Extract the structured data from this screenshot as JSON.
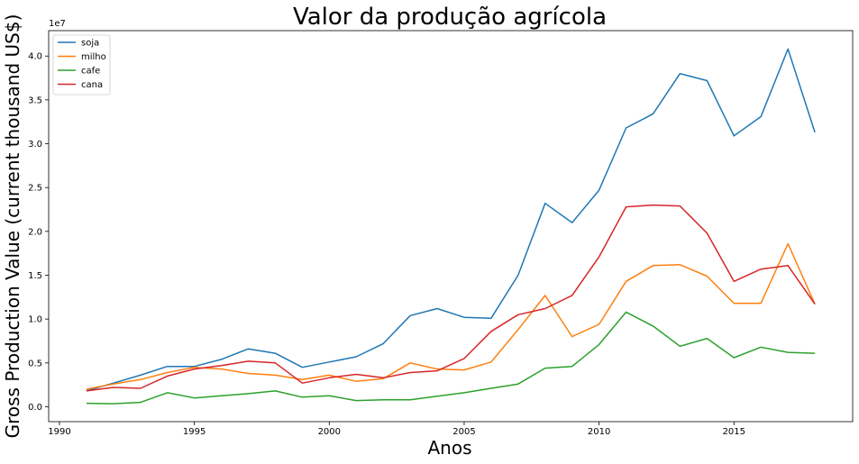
{
  "chart_data": {
    "type": "line",
    "title": "Valor da produção agrícola",
    "xlabel": "Anos",
    "ylabel": "Gross Production Value (current thousand US$)",
    "y_offset_label": "1e7",
    "xlim": [
      1989.6,
      2019.4
    ],
    "ylim": [
      -1700000,
      42900000
    ],
    "x_ticks": [
      1990,
      1995,
      2000,
      2005,
      2010,
      2015
    ],
    "x_tick_labels": [
      "1990",
      "1995",
      "2000",
      "2005",
      "2010",
      "2015"
    ],
    "y_ticks": [
      0,
      5000000,
      10000000,
      15000000,
      20000000,
      25000000,
      30000000,
      35000000,
      40000000
    ],
    "y_tick_labels": [
      "0.0",
      "0.5",
      "1.0",
      "1.5",
      "2.0",
      "2.5",
      "3.0",
      "3.5",
      "4.0"
    ],
    "grid": false,
    "legend_position": "top-left",
    "x": [
      1991,
      1992,
      1993,
      1994,
      1995,
      1996,
      1997,
      1998,
      1999,
      2000,
      2001,
      2002,
      2003,
      2004,
      2005,
      2006,
      2007,
      2008,
      2009,
      2010,
      2011,
      2012,
      2013,
      2014,
      2015,
      2016,
      2017,
      2018
    ],
    "series": [
      {
        "name": "soja",
        "color": "#1f77b4",
        "values": [
          1800000,
          2700000,
          3600000,
          4600000,
          4600000,
          5400000,
          6600000,
          6100000,
          4500000,
          5100000,
          5700000,
          7200000,
          10400000,
          11200000,
          10200000,
          10100000,
          15000000,
          23200000,
          21000000,
          24700000,
          31800000,
          33400000,
          38000000,
          37200000,
          30900000,
          33100000,
          40800000,
          31300000
        ]
      },
      {
        "name": "milho",
        "color": "#ff7f0e",
        "values": [
          2000000,
          2600000,
          3100000,
          3900000,
          4500000,
          4300000,
          3800000,
          3600000,
          3100000,
          3600000,
          2900000,
          3200000,
          5000000,
          4300000,
          4200000,
          5100000,
          8800000,
          12700000,
          8000000,
          9400000,
          14300000,
          16100000,
          16200000,
          14900000,
          11800000,
          11800000,
          18600000,
          11700000
        ]
      },
      {
        "name": "cafe",
        "color": "#2ca02c",
        "values": [
          400000,
          350000,
          500000,
          1600000,
          1000000,
          1250000,
          1500000,
          1800000,
          1100000,
          1250000,
          700000,
          800000,
          800000,
          1200000,
          1600000,
          2100000,
          2600000,
          4400000,
          4600000,
          7100000,
          10800000,
          9200000,
          6900000,
          7800000,
          5600000,
          6800000,
          6200000,
          6100000
        ]
      },
      {
        "name": "cana",
        "color": "#d62728",
        "values": [
          1800000,
          2200000,
          2100000,
          3500000,
          4300000,
          4700000,
          5200000,
          5000000,
          2700000,
          3300000,
          3700000,
          3300000,
          3900000,
          4100000,
          5500000,
          8600000,
          10500000,
          11200000,
          12700000,
          17100000,
          22800000,
          23000000,
          22900000,
          19800000,
          14300000,
          15700000,
          16100000,
          11700000
        ]
      }
    ]
  }
}
